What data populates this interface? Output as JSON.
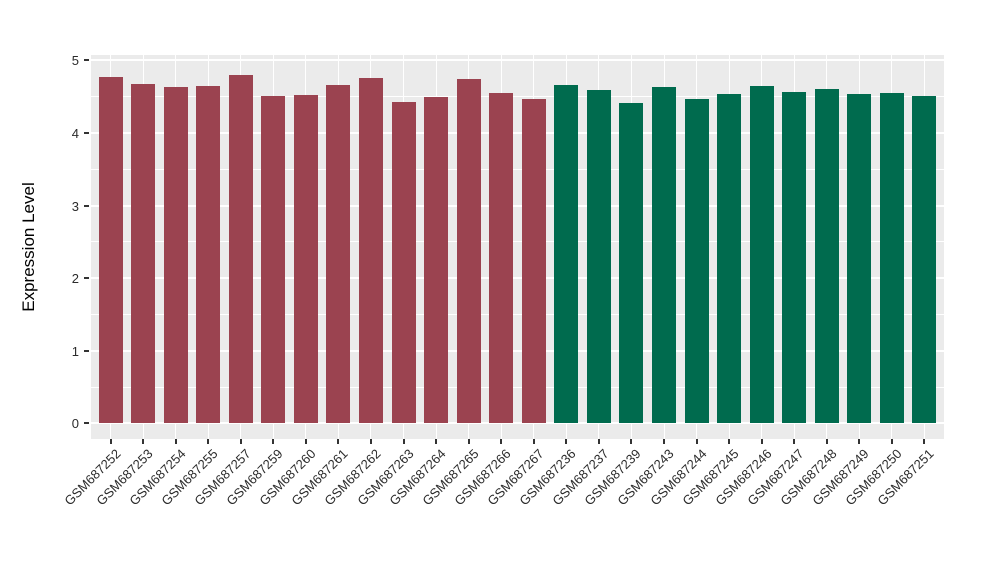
{
  "chart_data": {
    "type": "bar",
    "title": "",
    "xlabel": "",
    "ylabel": "Expression Level",
    "ylim": [
      0,
      5
    ],
    "yticks": [
      0,
      1,
      2,
      3,
      4,
      5
    ],
    "grid": "on",
    "legend": "none",
    "panel_background": "#EBEBEB",
    "grid_color": "#FFFFFF",
    "tick_color": "#333333",
    "series": [
      {
        "name": "maroon-group",
        "color": "#9B4350",
        "categories": [
          "GSM687252",
          "GSM687253",
          "GSM687254",
          "GSM687255",
          "GSM687257",
          "GSM687259",
          "GSM687260",
          "GSM687261",
          "GSM687262",
          "GSM687263",
          "GSM687264",
          "GSM687265",
          "GSM687266",
          "GSM687267"
        ],
        "values": [
          4.77,
          4.68,
          4.63,
          4.65,
          4.8,
          4.51,
          4.52,
          4.66,
          4.75,
          4.43,
          4.49,
          4.74,
          4.55,
          4.47
        ]
      },
      {
        "name": "green-group",
        "color": "#006B4E",
        "categories": [
          "GSM687236",
          "GSM687237",
          "GSM687239",
          "GSM687243",
          "GSM687244",
          "GSM687245",
          "GSM687246",
          "GSM687247",
          "GSM687248",
          "GSM687249",
          "GSM687250",
          "GSM687251"
        ],
        "values": [
          4.66,
          4.59,
          4.41,
          4.63,
          4.47,
          4.53,
          4.65,
          4.57,
          4.6,
          4.53,
          4.55,
          4.51
        ]
      }
    ]
  }
}
